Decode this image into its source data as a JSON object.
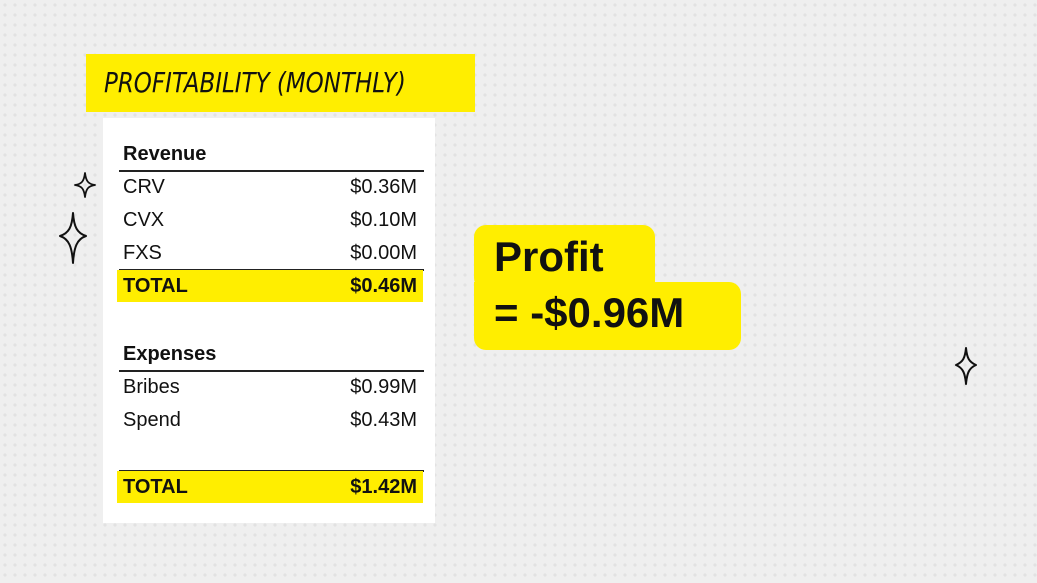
{
  "title": "PROFITABILITY (MONTHLY)",
  "revenue": {
    "heading": "Revenue",
    "rows": [
      {
        "label": "CRV",
        "value": "$0.36M"
      },
      {
        "label": "CVX",
        "value": "$0.10M"
      },
      {
        "label": "FXS",
        "value": "$0.00M"
      }
    ],
    "total": {
      "label": "TOTAL",
      "value": "$0.46M"
    }
  },
  "expenses": {
    "heading": "Expenses",
    "rows": [
      {
        "label": "Bribes",
        "value": "$0.99M"
      },
      {
        "label": "Spend",
        "value": "$0.43M"
      }
    ],
    "total": {
      "label": "TOTAL",
      "value": "$1.42M"
    }
  },
  "profit": {
    "line1": "Profit",
    "line2": "= -$0.96M"
  },
  "colors": {
    "highlight": "#ffee00",
    "background": "#efefef",
    "text": "#111111"
  },
  "icons": [
    "sparkle-icon",
    "sparkle-icon",
    "sparkle-icon"
  ]
}
